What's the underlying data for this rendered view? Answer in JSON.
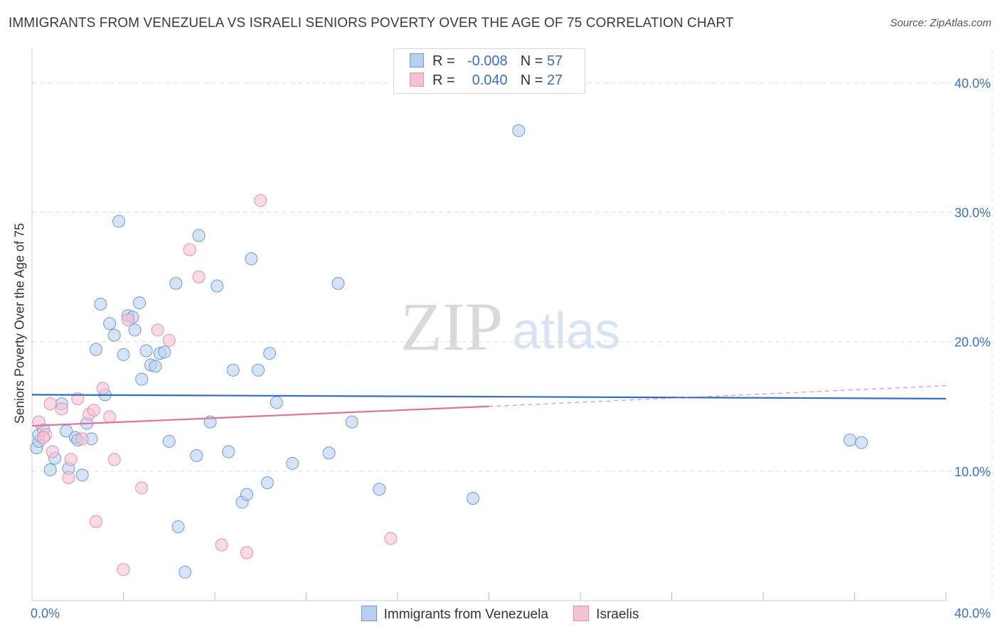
{
  "title": "IMMIGRANTS FROM VENEZUELA VS ISRAELI SENIORS POVERTY OVER THE AGE OF 75 CORRELATION CHART",
  "source": "Source: ZipAtlas.com",
  "watermark": {
    "zip": "ZIP",
    "atlas": "atlas"
  },
  "legend_top": {
    "r_label": "R =",
    "n_label": "N =",
    "series": [
      {
        "r": "-0.008",
        "n": "57"
      },
      {
        "r": "0.040",
        "n": "27"
      }
    ]
  },
  "legend_bottom": [
    "Immigrants from Venezuela",
    "Israelis"
  ],
  "colors": {
    "blue_fill": "#b8d0f0",
    "blue_stroke": "#6f9bd8",
    "blue_line": "#2e6ecb",
    "pink_fill": "#f6c2d2",
    "pink_stroke": "#e88fac",
    "pink_line": "#e0719a",
    "tick_text": "#3d6fc4",
    "grid": "#dddddd"
  },
  "chart_data": {
    "type": "scatter",
    "title": "IMMIGRANTS FROM VENEZUELA VS ISRAELI SENIORS POVERTY OVER THE AGE OF 75 CORRELATION CHART",
    "xlabel": "",
    "ylabel": "Seniors Poverty Over the Age of 75",
    "xlim": [
      0,
      40
    ],
    "ylim": [
      0,
      42
    ],
    "x_tick_labels": [
      {
        "value": 0,
        "label": "0.0%"
      },
      {
        "value": 40,
        "label": "40.0%"
      }
    ],
    "y_tick_labels": [
      {
        "value": 10,
        "label": "10.0%"
      },
      {
        "value": 20,
        "label": "20.0%"
      },
      {
        "value": 30,
        "label": "30.0%"
      },
      {
        "value": 40,
        "label": "40.0%"
      }
    ],
    "grid": true,
    "series": [
      {
        "name": "Immigrants from Venezuela",
        "color": "blue",
        "trend": {
          "x0": 0,
          "y0": 15.9,
          "x1": 40,
          "y1": 15.6,
          "dashed_to": null
        },
        "points": [
          [
            0.2,
            11.8
          ],
          [
            0.3,
            12.3
          ],
          [
            0.3,
            12.8
          ],
          [
            0.5,
            13.2
          ],
          [
            0.8,
            10.1
          ],
          [
            1.0,
            11.0
          ],
          [
            1.3,
            15.2
          ],
          [
            1.5,
            13.1
          ],
          [
            1.6,
            10.2
          ],
          [
            1.9,
            12.6
          ],
          [
            2.0,
            12.4
          ],
          [
            2.2,
            9.7
          ],
          [
            2.4,
            13.7
          ],
          [
            2.6,
            12.5
          ],
          [
            2.8,
            19.4
          ],
          [
            3.0,
            22.9
          ],
          [
            3.2,
            15.9
          ],
          [
            3.4,
            21.4
          ],
          [
            3.6,
            20.5
          ],
          [
            3.8,
            29.3
          ],
          [
            4.0,
            19.0
          ],
          [
            4.2,
            22.0
          ],
          [
            4.4,
            21.9
          ],
          [
            4.5,
            20.9
          ],
          [
            4.7,
            23.0
          ],
          [
            4.8,
            17.1
          ],
          [
            5.0,
            19.3
          ],
          [
            5.2,
            18.2
          ],
          [
            5.4,
            18.1
          ],
          [
            5.6,
            19.1
          ],
          [
            5.8,
            19.2
          ],
          [
            6.0,
            12.3
          ],
          [
            6.3,
            24.5
          ],
          [
            6.4,
            5.7
          ],
          [
            6.7,
            2.2
          ],
          [
            7.2,
            11.2
          ],
          [
            7.3,
            28.2
          ],
          [
            7.8,
            13.8
          ],
          [
            8.1,
            24.3
          ],
          [
            8.6,
            11.5
          ],
          [
            8.8,
            17.8
          ],
          [
            9.2,
            7.6
          ],
          [
            9.4,
            8.2
          ],
          [
            9.6,
            26.4
          ],
          [
            9.9,
            17.8
          ],
          [
            10.3,
            9.1
          ],
          [
            10.4,
            19.1
          ],
          [
            10.7,
            15.3
          ],
          [
            11.4,
            10.6
          ],
          [
            13.0,
            11.4
          ],
          [
            13.4,
            24.5
          ],
          [
            14.0,
            13.8
          ],
          [
            15.2,
            8.6
          ],
          [
            19.3,
            7.9
          ],
          [
            21.3,
            36.3
          ],
          [
            35.8,
            12.4
          ],
          [
            36.3,
            12.2
          ]
        ]
      },
      {
        "name": "Israelis",
        "color": "pink",
        "trend": {
          "x0": 0,
          "y0": 13.5,
          "x1": 20,
          "y1": 15.0,
          "dashed_to": {
            "x": 40,
            "y": 16.6
          }
        },
        "points": [
          [
            0.3,
            13.8
          ],
          [
            0.6,
            12.8
          ],
          [
            0.8,
            15.2
          ],
          [
            0.9,
            11.5
          ],
          [
            1.3,
            14.8
          ],
          [
            1.6,
            9.5
          ],
          [
            1.7,
            10.9
          ],
          [
            2.0,
            15.6
          ],
          [
            2.2,
            12.5
          ],
          [
            2.5,
            14.4
          ],
          [
            2.7,
            14.7
          ],
          [
            2.8,
            6.1
          ],
          [
            3.1,
            16.4
          ],
          [
            3.4,
            14.2
          ],
          [
            3.6,
            10.9
          ],
          [
            4.0,
            2.4
          ],
          [
            4.2,
            21.7
          ],
          [
            4.8,
            8.7
          ],
          [
            5.5,
            20.9
          ],
          [
            6.0,
            20.1
          ],
          [
            6.9,
            27.1
          ],
          [
            7.3,
            25.0
          ],
          [
            8.3,
            4.3
          ],
          [
            9.4,
            3.7
          ],
          [
            10.0,
            30.9
          ],
          [
            15.7,
            4.8
          ],
          [
            0.5,
            12.6
          ]
        ]
      }
    ]
  }
}
